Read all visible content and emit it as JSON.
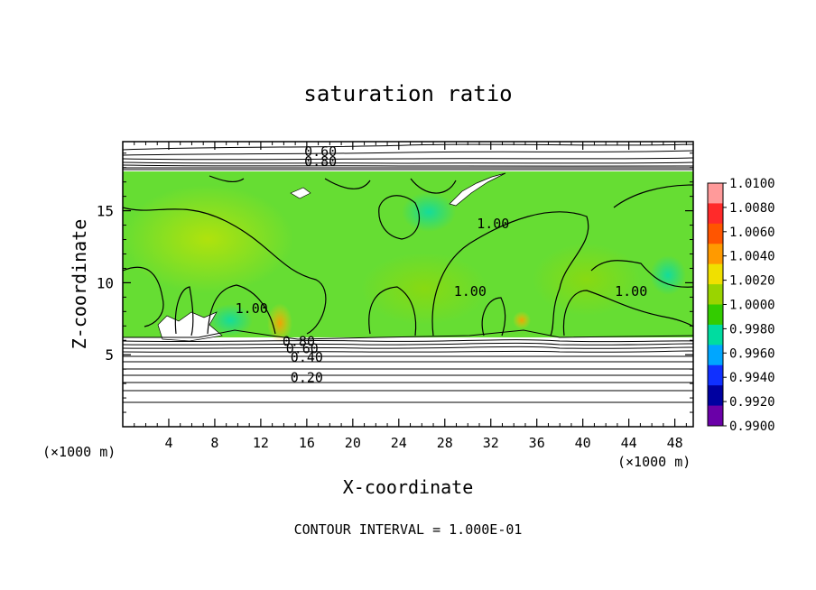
{
  "chart_data": {
    "type": "heatmap",
    "title": "saturation ratio",
    "xlabel": "X-coordinate",
    "ylabel": "Z-coordinate",
    "x_unit": "(×1000 m)",
    "z_unit": "(×1000 m)",
    "xlim": [
      0,
      49.6
    ],
    "ylim": [
      0,
      19.8
    ],
    "x_ticks": [
      "4",
      "8",
      "12",
      "16",
      "20",
      "24",
      "28",
      "32",
      "36",
      "40",
      "44",
      "48"
    ],
    "x_tick_values": [
      4,
      8,
      12,
      16,
      20,
      24,
      28,
      32,
      36,
      40,
      44,
      48
    ],
    "y_ticks": [
      "5",
      "10",
      "15"
    ],
    "y_tick_values": [
      5,
      10,
      15
    ],
    "footer": "CONTOUR INTERVAL = 1.000E-01",
    "contour_labels": [
      {
        "text": "0.60",
        "x": 17.2,
        "z": 18.8
      },
      {
        "text": "0.80",
        "x": 17.2,
        "z": 18.1
      },
      {
        "text": "1.00",
        "x": 32.2,
        "z": 13.8
      },
      {
        "text": "1.00",
        "x": 30.2,
        "z": 9.1
      },
      {
        "text": "1.00",
        "x": 44.2,
        "z": 9.1
      },
      {
        "text": "1.00",
        "x": 11.2,
        "z": 7.9
      },
      {
        "text": "0.80",
        "x": 15.3,
        "z": 5.6
      },
      {
        "text": "0.60",
        "x": 15.6,
        "z": 5.1
      },
      {
        "text": "0.40",
        "x": 16.0,
        "z": 4.5
      },
      {
        "text": "0.20",
        "x": 16.0,
        "z": 3.1
      }
    ],
    "colorbar": {
      "labels": [
        "1.0100",
        "1.0080",
        "1.0060",
        "1.0040",
        "1.0020",
        "1.0000",
        "0.9980",
        "0.9960",
        "0.9940",
        "0.9920",
        "0.9900"
      ],
      "colors": [
        "#ff9a9a",
        "#ff2a2a",
        "#ff5500",
        "#ff9a00",
        "#f0e000",
        "#9ad400",
        "#33cc00",
        "#00dca0",
        "#00a6ff",
        "#1030ff",
        "#0000a0",
        "#6a00a8"
      ]
    },
    "bands": {
      "saturated_top_z": 17.8,
      "saturated_bottom_z": 6.3,
      "fill_color": "#66dd33"
    }
  }
}
